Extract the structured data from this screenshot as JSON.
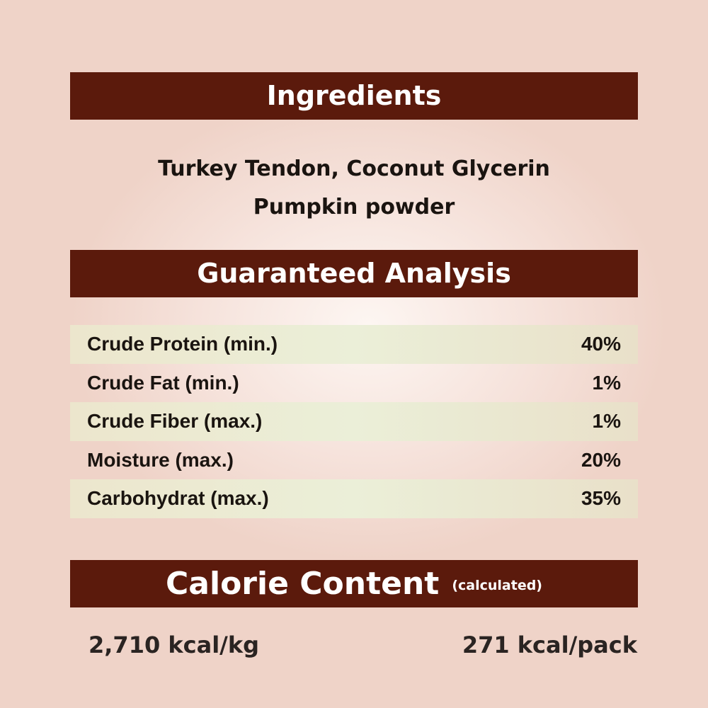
{
  "ingredients": {
    "title": "Ingredients",
    "line1": "Turkey Tendon, Coconut Glycerin",
    "line2": "Pumpkin powder"
  },
  "analysis": {
    "title": "Guaranteed Analysis",
    "rows": [
      {
        "label": "Crude Protein (min.)",
        "value": "40%"
      },
      {
        "label": "Crude Fat (min.)",
        "value": "1%"
      },
      {
        "label": "Crude Fiber (max.)",
        "value": "1%"
      },
      {
        "label": "Moisture (max.)",
        "value": "20%"
      },
      {
        "label": "Carbohydrat (max.)",
        "value": "35%"
      }
    ]
  },
  "calorie": {
    "title": "Calorie Content",
    "note": "(calculated)",
    "per_kg": "2,710 kcal/kg",
    "per_pack": "271 kcal/pack"
  },
  "colors": {
    "header_bg": "#5b1a0c",
    "row_shade": "#ebefd8"
  }
}
